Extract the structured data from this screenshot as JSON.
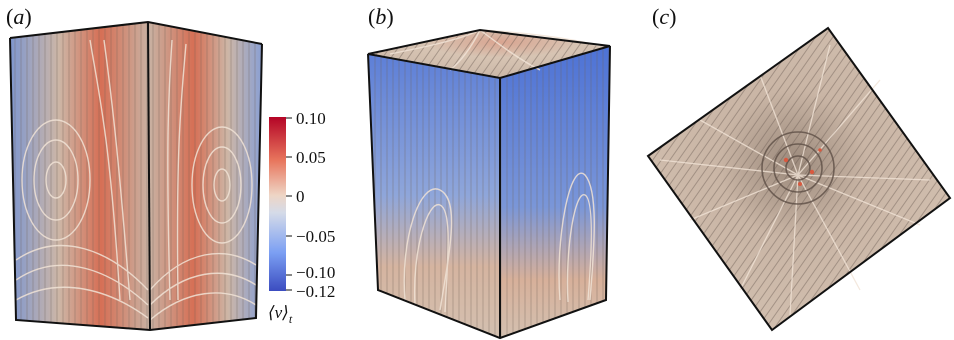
{
  "panels": [
    {
      "open": "(",
      "letter": "a",
      "close": ")"
    },
    {
      "open": "(",
      "letter": "b",
      "close": ")"
    },
    {
      "open": "(",
      "letter": "c",
      "close": ")"
    }
  ],
  "colorbar": {
    "ticks": [
      "0.10",
      "0.05",
      "0",
      "−0.05",
      "−0.10",
      "−0.12"
    ],
    "label_main": "⟨v⟩",
    "label_sub": "t",
    "colors": {
      "high": "#b40426",
      "mid": "#dddddd",
      "low": "#3b4cc0"
    }
  },
  "colors": {
    "tube": "#d4c1b0",
    "tube_shadow": "#7d6c60",
    "upflow": "#d9593f",
    "downflow": "#4a72d6",
    "edge": "#111111"
  }
}
